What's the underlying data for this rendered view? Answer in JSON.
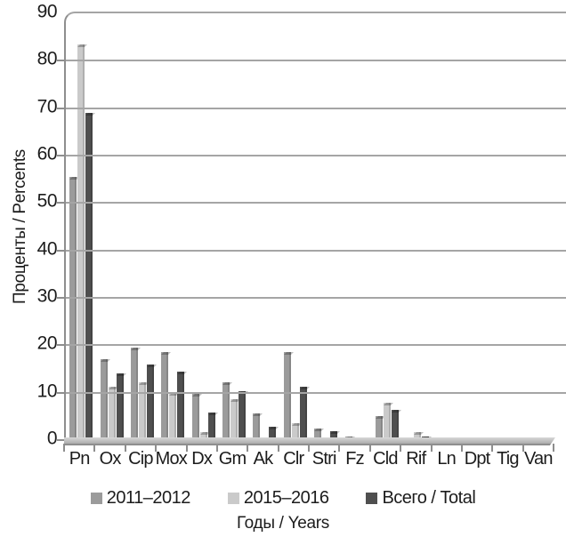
{
  "figure": {
    "background": "#ffffff",
    "text_color": "#1c1c1c",
    "gridline_color": "#a5a5a5",
    "axis_color": "#8e8e8e"
  },
  "chart_data": {
    "type": "bar",
    "title": "",
    "xlabel": "Годы / Years",
    "ylabel": "Проценты / Percents",
    "ylim": [
      0,
      90
    ],
    "yticks": [
      0,
      10,
      20,
      30,
      40,
      50,
      60,
      70,
      80,
      90
    ],
    "grid": true,
    "legend_position": "bottom",
    "categories": [
      "Pn",
      "Ox",
      "Cip",
      "Mox",
      "Dx",
      "Gm",
      "Ak",
      "Clr",
      "Stri",
      "Fz",
      "Cld",
      "Rif",
      "Ln",
      "Dpt",
      "Tig",
      "Van"
    ],
    "series": [
      {
        "name": "2011–2012",
        "color": "#9b9b9b",
        "values": [
          55.5,
          17,
          19.5,
          18.5,
          9.8,
          12.2,
          5.6,
          18.5,
          2.5,
          0.8,
          5.0,
          0.3,
          0.3,
          0.3,
          0.3,
          0.3
        ]
      },
      {
        "name": "2015–2016",
        "color": "#cacaca",
        "values": [
          83.5,
          11.2,
          12.2,
          10,
          1.7,
          8.7,
          0.3,
          3.6,
          0.3,
          0.3,
          7.8,
          1.6,
          0.3,
          0.3,
          0.3,
          0.3
        ]
      },
      {
        "name": "Всего / Total",
        "color": "#4f4f4f",
        "values": [
          69,
          14,
          16,
          14.5,
          5.8,
          10.3,
          2.9,
          11.2,
          1.9,
          0.4,
          6.3,
          0.7,
          0.3,
          0.3,
          0.3,
          0.3
        ]
      }
    ]
  }
}
